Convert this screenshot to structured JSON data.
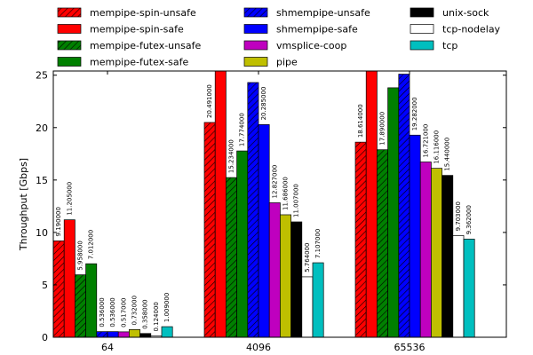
{
  "chart_data": {
    "type": "bar",
    "y_label": "Throughput [Gbps]",
    "categories": [
      "64",
      "4096",
      "65536"
    ],
    "ylim": [
      0,
      25.4
    ],
    "yticks": [
      0,
      5,
      10,
      15,
      20,
      25
    ],
    "series": [
      {
        "name": "mempipe-spin-unsafe",
        "color": "#ff0000",
        "hatch": true,
        "values": [
          9.19,
          20.491,
          18.614
        ],
        "value_labels": [
          "9.190000",
          "20.491000",
          "18.614000"
        ]
      },
      {
        "name": "mempipe-spin-safe",
        "color": "#ff0000",
        "hatch": false,
        "values": [
          11.205,
          26,
          26
        ],
        "value_labels": [
          "11.205000",
          null,
          null
        ]
      },
      {
        "name": "mempipe-futex-unsafe",
        "color": "#008000",
        "hatch": true,
        "values": [
          5.958,
          15.234,
          17.89
        ],
        "value_labels": [
          "5.958000",
          "15.234000",
          "17.890000"
        ]
      },
      {
        "name": "mempipe-futex-safe",
        "color": "#008000",
        "hatch": false,
        "values": [
          7.012,
          17.774,
          23.8
        ],
        "value_labels": [
          "7.012000",
          "17.774000",
          null
        ]
      },
      {
        "name": "shmempipe-unsafe",
        "color": "#0000ff",
        "hatch": true,
        "values": [
          0.536,
          24.3,
          25.1
        ],
        "value_labels": [
          "0.536000",
          null,
          null
        ]
      },
      {
        "name": "shmempipe-safe",
        "color": "#0000ff",
        "hatch": false,
        "values": [
          0.536,
          20.285,
          19.282
        ],
        "value_labels": [
          "0.536000",
          "20.285000",
          "19.282000"
        ]
      },
      {
        "name": "vmsplice-coop",
        "color": "#bf00bf",
        "hatch": false,
        "values": [
          0.517,
          12.827,
          16.721
        ],
        "value_labels": [
          "0.517000",
          "12.827000",
          "16.721000"
        ]
      },
      {
        "name": "pipe",
        "color": "#bfbf00",
        "hatch": false,
        "values": [
          0.732,
          11.686,
          16.116
        ],
        "value_labels": [
          "0.732000",
          "11.686000",
          "16.116000"
        ]
      },
      {
        "name": "unix-sock",
        "color": "#000000",
        "hatch": false,
        "values": [
          0.358,
          11.007,
          15.44
        ],
        "value_labels": [
          "0.358000",
          "11.007000",
          "15.440000"
        ]
      },
      {
        "name": "tcp-nodelay",
        "color": "#ffffff",
        "hatch": false,
        "values": [
          0.124,
          5.764,
          9.703
        ],
        "value_labels": [
          "0.124000",
          "5.764000",
          "9.703000"
        ]
      },
      {
        "name": "tcp",
        "color": "#00bfbf",
        "hatch": false,
        "values": [
          1.009,
          7.107,
          9.362
        ],
        "value_labels": [
          "1.009000",
          "7.107000",
          "9.362000"
        ]
      }
    ]
  }
}
